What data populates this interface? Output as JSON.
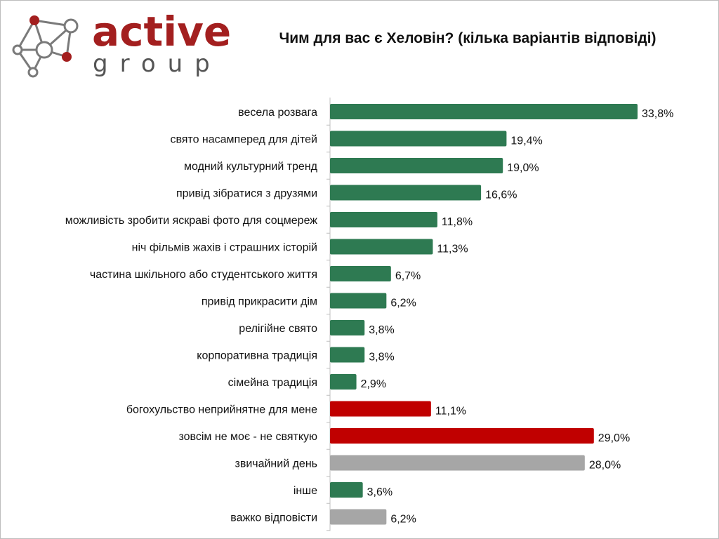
{
  "logo": {
    "active": "active",
    "group": "group"
  },
  "chart_data": {
    "type": "bar",
    "orientation": "horizontal",
    "title": "Чим для вас є Хеловін? (кілька варіантів відповіді)",
    "xlim": [
      0,
      35
    ],
    "grid": false,
    "categories": [
      "весела розвага",
      "свято насамперед для дітей",
      "модний культурний тренд",
      "привід зібратися з друзями",
      "можливість зробити яскраві фото для соцмереж",
      "ніч фільмів жахів і страшних історій",
      "частина шкільного або студентського життя",
      "привід прикрасити дім",
      "релігійне свято",
      "корпоративна традиція",
      "сімейна традиція",
      "богохульство неприйнятне для мене",
      "зовсім не моє - не святкую",
      "звичайний день",
      "інше",
      "важко відповісти"
    ],
    "values": [
      33.8,
      19.4,
      19.0,
      16.6,
      11.8,
      11.3,
      6.7,
      6.2,
      3.8,
      3.8,
      2.9,
      11.1,
      29.0,
      28.0,
      3.6,
      6.2
    ],
    "value_labels": [
      "33,8%",
      "19,4%",
      "19,0%",
      "16,6%",
      "11,8%",
      "11,3%",
      "6,7%",
      "6,2%",
      "3,8%",
      "3,8%",
      "2,9%",
      "11,1%",
      "29,0%",
      "28,0%",
      "3,6%",
      "6,2%"
    ],
    "colors": [
      "#2e7a52",
      "#2e7a52",
      "#2e7a52",
      "#2e7a52",
      "#2e7a52",
      "#2e7a52",
      "#2e7a52",
      "#2e7a52",
      "#2e7a52",
      "#2e7a52",
      "#2e7a52",
      "#c00000",
      "#c00000",
      "#a6a6a6",
      "#2e7a52",
      "#a6a6a6"
    ]
  }
}
